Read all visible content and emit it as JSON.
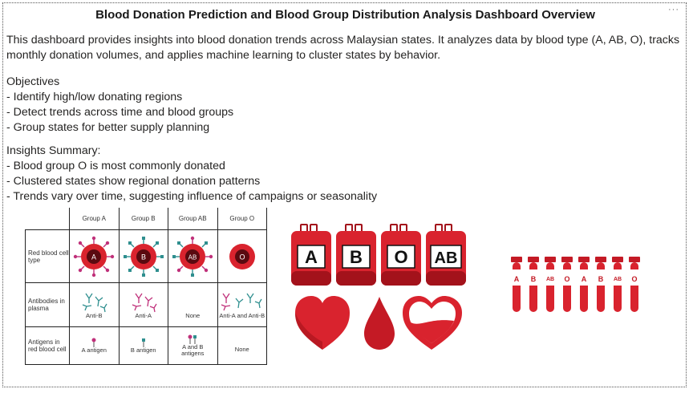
{
  "panel": {
    "title": "Blood Donation Prediction and Blood Group Distribution Analysis Dashboard Overview",
    "more_icon": "more-options-icon",
    "description": "This dashboard provides insights into blood donation trends across Malaysian states. It analyzes data by blood type (A, AB, O), tracks monthly donation volumes, and applies machine learning to cluster states by behavior."
  },
  "objectives": {
    "heading": "Objectives",
    "items": [
      "- Identify high/low donating regions",
      "- Detect trends across time and blood groups",
      "- Group states for better supply planning"
    ]
  },
  "insights": {
    "heading": "Insights Summary:",
    "items": [
      "- Blood group O is most commonly donated",
      "- Clustered states show regional donation patterns",
      "- Trends vary over time, suggesting influence of campaigns or seasonality"
    ]
  },
  "blood_table": {
    "columns": [
      "Group A",
      "Group B",
      "Group AB",
      "Group O"
    ],
    "row_labels": [
      "Red blood cell type",
      "Antibodies in plasma",
      "Antigens in red blood cell"
    ],
    "cell_letters": [
      "A",
      "B",
      "AB",
      "O"
    ],
    "antibodies": [
      "Anti-B",
      "Anti-A",
      "None",
      "Anti-A and Anti-B"
    ],
    "antigens": [
      "A antigen",
      "B antigen",
      "A and B antigens",
      "None"
    ]
  },
  "bags": [
    "A",
    "B",
    "O",
    "AB"
  ],
  "tubes": [
    "A",
    "B",
    "AB",
    "O",
    "A",
    "B",
    "AB",
    "O"
  ],
  "colors": {
    "blood_red": "#d9232e",
    "dark_red": "#a3121b",
    "antibody_teal": "#2f8f8f",
    "antigen_pink": "#c0307a"
  }
}
